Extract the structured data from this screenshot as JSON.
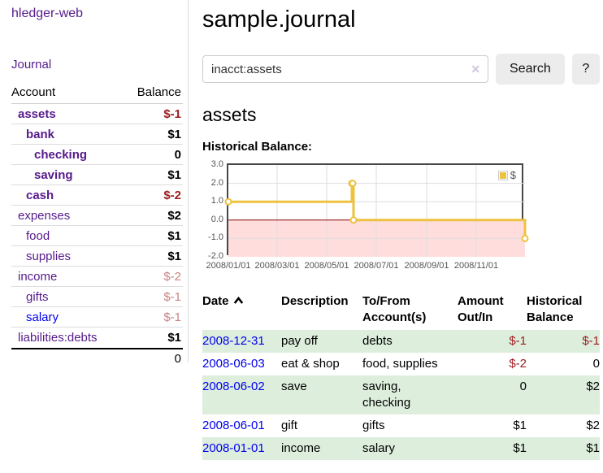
{
  "app": {
    "brand": "hledger-web",
    "nav_journal": "Journal"
  },
  "sidebar": {
    "table_headers": {
      "account": "Account",
      "balance": "Balance"
    },
    "accounts": [
      {
        "name": "assets",
        "indent": 0,
        "balance": "$-1",
        "bold": true,
        "neg": "strong"
      },
      {
        "name": "bank",
        "indent": 1,
        "balance": "$1",
        "bold": true,
        "neg": null
      },
      {
        "name": "checking",
        "indent": 2,
        "balance": "0",
        "bold": true,
        "neg": null
      },
      {
        "name": "saving",
        "indent": 2,
        "balance": "$1",
        "bold": true,
        "neg": null
      },
      {
        "name": "cash",
        "indent": 1,
        "balance": "$-2",
        "bold": true,
        "neg": "strong"
      },
      {
        "name": "expenses",
        "indent": 0,
        "balance": "$2",
        "bold": false,
        "neg": null
      },
      {
        "name": "food",
        "indent": 1,
        "balance": "$1",
        "bold": false,
        "neg": null
      },
      {
        "name": "supplies",
        "indent": 1,
        "balance": "$1",
        "bold": false,
        "neg": null
      },
      {
        "name": "income",
        "indent": 0,
        "balance": "$-2",
        "bold": false,
        "neg": "soft"
      },
      {
        "name": "gifts",
        "indent": 1,
        "balance": "$-1",
        "bold": false,
        "neg": "soft"
      },
      {
        "name": "salary",
        "indent": 1,
        "balance": "$-1",
        "bold": false,
        "neg": "soft",
        "link": "unvisited"
      },
      {
        "name": "liabilities:debts",
        "indent": 0,
        "balance": "$1",
        "bold": false,
        "neg": null
      }
    ],
    "total": "0"
  },
  "header": {
    "title": "sample.journal"
  },
  "search": {
    "value": "inacct:assets",
    "clear_icon": "✕",
    "button_label": "Search",
    "help_label": "?"
  },
  "account_page": {
    "heading": "assets"
  },
  "icons": {
    "sort_ascending": "chevron-up",
    "clear_search": "x-mark"
  },
  "register": {
    "columns": [
      "Date",
      "Description",
      "To/From Account(s)",
      "Amount Out/In",
      "Historical Balance"
    ],
    "rows": [
      {
        "date": "2008-12-31",
        "description": "pay off",
        "accounts": "debts",
        "amount": "$-1",
        "balance": "$-1",
        "amount_neg": true,
        "balance_neg": true
      },
      {
        "date": "2008-06-03",
        "description": "eat & shop",
        "accounts": "food, supplies",
        "amount": "$-2",
        "balance": "0",
        "amount_neg": true,
        "balance_neg": false
      },
      {
        "date": "2008-06-02",
        "description": "save",
        "accounts": "saving, checking",
        "amount": "0",
        "balance": "$2",
        "amount_neg": false,
        "balance_neg": false
      },
      {
        "date": "2008-06-01",
        "description": "gift",
        "accounts": "gifts",
        "amount": "$1",
        "balance": "$2",
        "amount_neg": false,
        "balance_neg": false
      },
      {
        "date": "2008-01-01",
        "description": "income",
        "accounts": "salary",
        "amount": "$1",
        "balance": "$1",
        "amount_neg": false,
        "balance_neg": false
      }
    ]
  },
  "chart_data": {
    "type": "line",
    "title": "Historical Balance:",
    "series": [
      {
        "name": "$",
        "color": "#edc240",
        "step": true,
        "points": [
          {
            "date": "2008-01-01",
            "value": 1
          },
          {
            "date": "2008-06-01",
            "value": 2
          },
          {
            "date": "2008-06-02",
            "value": 2
          },
          {
            "date": "2008-06-03",
            "value": 0
          },
          {
            "date": "2008-12-31",
            "value": -1
          }
        ]
      }
    ],
    "x_ticks": [
      "2008/01/01",
      "2008/03/01",
      "2008/05/01",
      "2008/07/01",
      "2008/09/01",
      "2008/11/01"
    ],
    "y_ticks": [
      "3.0",
      "2.0",
      "1.0",
      "0.0",
      "-1.0",
      "-2.0"
    ],
    "x_range": [
      "2008-01-01",
      "2008-12-31"
    ],
    "y_range": [
      -2,
      3
    ],
    "grid": true,
    "legend_position": "top-right",
    "negative_region_color": "#ffdddd",
    "zero_line_color": "#880000",
    "grid_color": "#dedede"
  },
  "colors": {
    "visited_link_purple": "#551A8B",
    "link_blue": "#0000EE",
    "negative_strong": "#9d1d20",
    "negative_soft": "#c98383",
    "row_stripe_green": "#ddeedd",
    "series_gold": "#edc240",
    "negative_region_pink": "#ffdddd",
    "zero_line_dark_red": "#880000",
    "button_gray": "#ececec"
  }
}
